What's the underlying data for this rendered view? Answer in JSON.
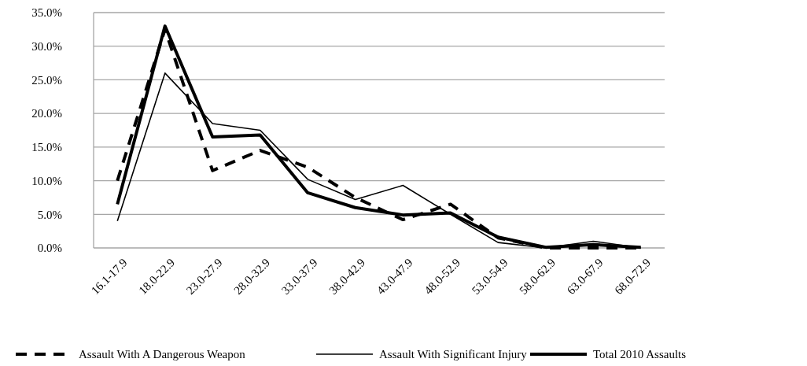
{
  "chart_data": {
    "type": "line",
    "categories": [
      "16.1-17.9",
      "18.0-22.9",
      "23.0-27.9",
      "28.0-32.9",
      "33.0-37.9",
      "38.0-42.9",
      "43.0-47.9",
      "48.0-52.9",
      "53.0-54.9",
      "58.0-62.9",
      "63.0-67.9",
      "68.0-72.9"
    ],
    "series": [
      {
        "name": "Assault With A Dangerous Weapon",
        "color": "#000000",
        "line_style": "dashed",
        "values": [
          10.0,
          32.5,
          11.5,
          14.5,
          12.0,
          7.5,
          4.2,
          6.5,
          1.5,
          0,
          0,
          0
        ]
      },
      {
        "name": "Assault With Significant Injury",
        "color": "#000000",
        "line_style": "solid",
        "values": [
          4.0,
          26.0,
          18.5,
          17.5,
          10.2,
          7.2,
          9.3,
          5.0,
          0.8,
          0,
          1.0,
          0
        ]
      },
      {
        "name": "Total 2010 Assaults",
        "color": "#000000",
        "line_style": "solid",
        "values": [
          6.5,
          33.0,
          16.5,
          16.8,
          8.2,
          6.0,
          4.9,
          5.2,
          1.6,
          0.1,
          0.5,
          0.1
        ]
      }
    ],
    "ylim": [
      0,
      35
    ],
    "yticks": [
      {
        "value": 0,
        "label": "0.0%"
      },
      {
        "value": 5,
        "label": "5.0%"
      },
      {
        "value": 10,
        "label": "10.0%"
      },
      {
        "value": 15,
        "label": "15.0%"
      },
      {
        "value": 20,
        "label": "20.0%"
      },
      {
        "value": 25,
        "label": "25.0%"
      },
      {
        "value": 30,
        "label": "30.0%"
      },
      {
        "value": 35,
        "label": "35.0%"
      }
    ],
    "grid": "y",
    "legend": "bottom"
  }
}
